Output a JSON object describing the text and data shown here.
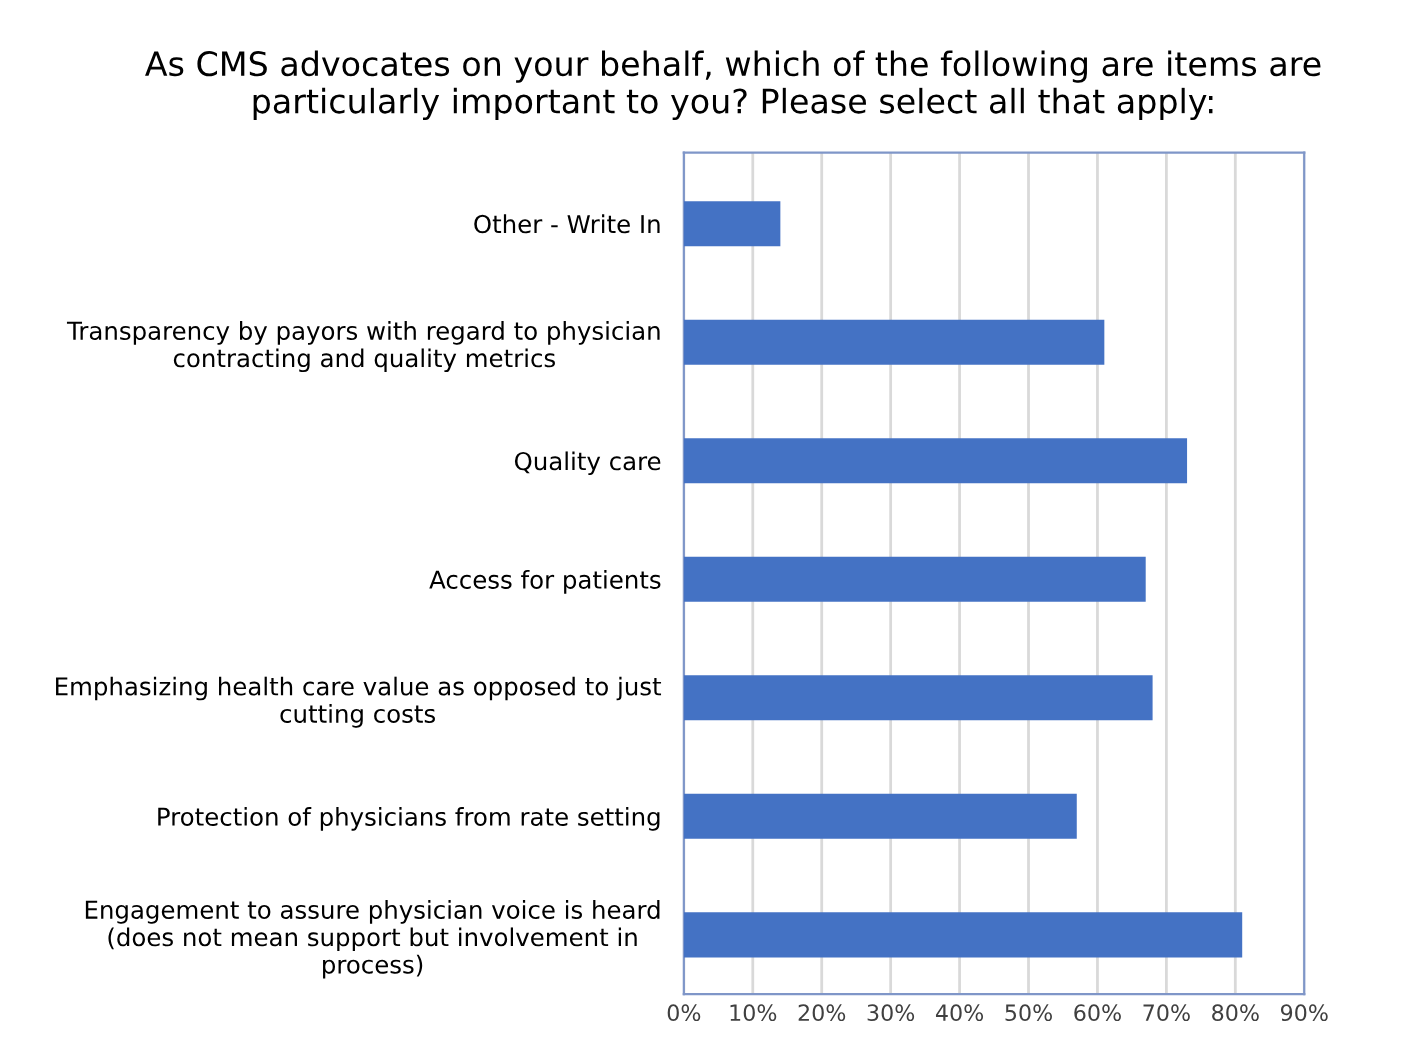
{
  "chart_data": {
    "type": "bar",
    "orientation": "horizontal",
    "title": "As CMS advocates on your behalf, which of the following are items are particularly important to you? Please select all that apply:",
    "categories": [
      "Other - Write In",
      "Transparency by payors with regard to physician\ncontracting and quality metrics",
      "Quality care",
      "Access for patients",
      "Emphasizing health care value as opposed to just\ncutting costs",
      "Protection of physicians from rate setting",
      "Engagement to assure physician voice is heard\n(does not mean support but involvement in\nprocess)"
    ],
    "values": [
      14,
      61,
      73,
      67,
      68,
      57,
      81
    ],
    "color": "#4472c4",
    "xlim": [
      0,
      90
    ],
    "xticks": [
      {
        "value": 0,
        "label": "0%"
      },
      {
        "value": 10,
        "label": "10%"
      },
      {
        "value": 20,
        "label": "20%"
      },
      {
        "value": 30,
        "label": "30%"
      },
      {
        "value": 40,
        "label": "40%"
      },
      {
        "value": 50,
        "label": "50%"
      },
      {
        "value": 60,
        "label": "60%"
      },
      {
        "value": 70,
        "label": "70%"
      },
      {
        "value": 80,
        "label": "80%"
      },
      {
        "value": 90,
        "label": "90%"
      }
    ],
    "grid": "x"
  }
}
